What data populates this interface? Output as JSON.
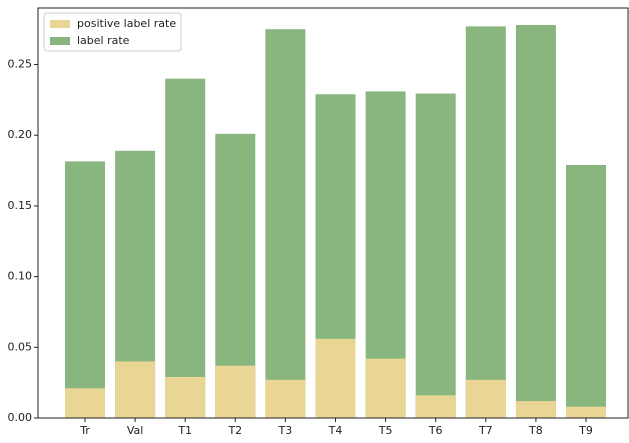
{
  "chart_data": {
    "type": "bar",
    "categories": [
      "Tr",
      "Val",
      "T1",
      "T2",
      "T3",
      "T4",
      "T5",
      "T6",
      "T7",
      "T8",
      "T9"
    ],
    "series": [
      {
        "name": "positive label rate",
        "color": "#e9d695",
        "values": [
          0.021,
          0.04,
          0.029,
          0.037,
          0.027,
          0.056,
          0.042,
          0.016,
          0.027,
          0.012,
          0.008
        ]
      },
      {
        "name": "label rate",
        "color": "#88b67e",
        "values": [
          0.1815,
          0.189,
          0.24,
          0.201,
          0.275,
          0.229,
          0.231,
          0.2295,
          0.277,
          0.278,
          0.179
        ]
      }
    ],
    "ylim": [
      0,
      0.29
    ],
    "yticks": [
      {
        "value": 0,
        "label": "0.00"
      },
      0.05,
      {
        "value": 0.1,
        "label": "0.10"
      },
      0.15,
      {
        "value": 0.2,
        "label": "0.20"
      },
      0.25
    ],
    "legend": "upper left"
  }
}
